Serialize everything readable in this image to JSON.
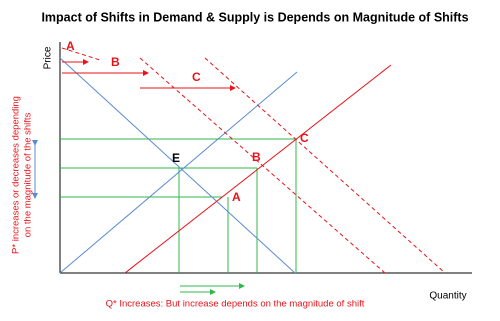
{
  "title": "Impact of Shifts in Demand & Supply is Depends on Magnitude of Shifts",
  "axes": {
    "y_label": "Price",
    "x_label": "Quantity"
  },
  "labels": {
    "shift_a": "A",
    "shift_b": "B",
    "shift_c": "C",
    "equilibrium_e": "E",
    "point_a": "A",
    "point_b": "B",
    "point_c": "C"
  },
  "annotations": {
    "price_line1": "P* increases or decreases depending",
    "price_line2": "on the magnitude of the shifts",
    "quantity": "Q* Increases: But increase depends on the magnitude of shift"
  }
}
